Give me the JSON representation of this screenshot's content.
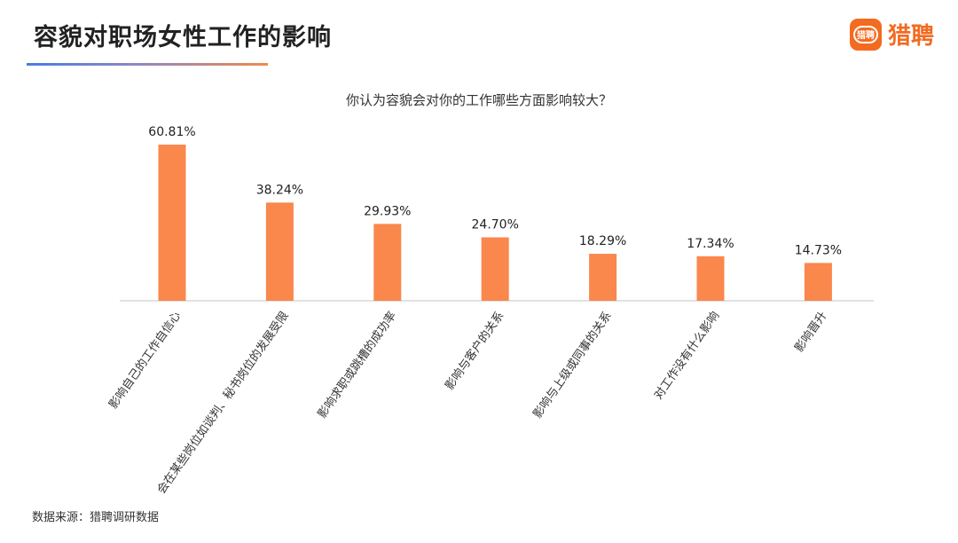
{
  "header": {
    "title": "容貌对职场女性工作的影响",
    "brand_badge_text": "猎聘",
    "brand_name": "猎聘"
  },
  "footer": {
    "source": "数据来源：猎聘调研数据"
  },
  "colors": {
    "bar": "#fa874c",
    "brand": "#f26b21",
    "axis": "#d9d9d9"
  },
  "chart_data": {
    "type": "bar",
    "title": "你认为容貌会对你的工作哪些方面影响较大？",
    "categories": [
      "影响自己的工作自信心",
      "会在某些岗位如谈判、秘书岗位的发展受限",
      "影响求职或跳槽的成功率",
      "影响与客户的关系",
      "影响与上级或同事的关系",
      "对工作没有什么影响",
      "影响晋升"
    ],
    "values": [
      60.81,
      38.24,
      29.93,
      24.7,
      18.29,
      17.34,
      14.73
    ],
    "data_labels": [
      "60.81%",
      "38.24%",
      "29.93%",
      "24.70%",
      "18.29%",
      "17.34%",
      "14.73%"
    ],
    "ylim": [
      0,
      63
    ],
    "grid": false,
    "legend": "none"
  }
}
